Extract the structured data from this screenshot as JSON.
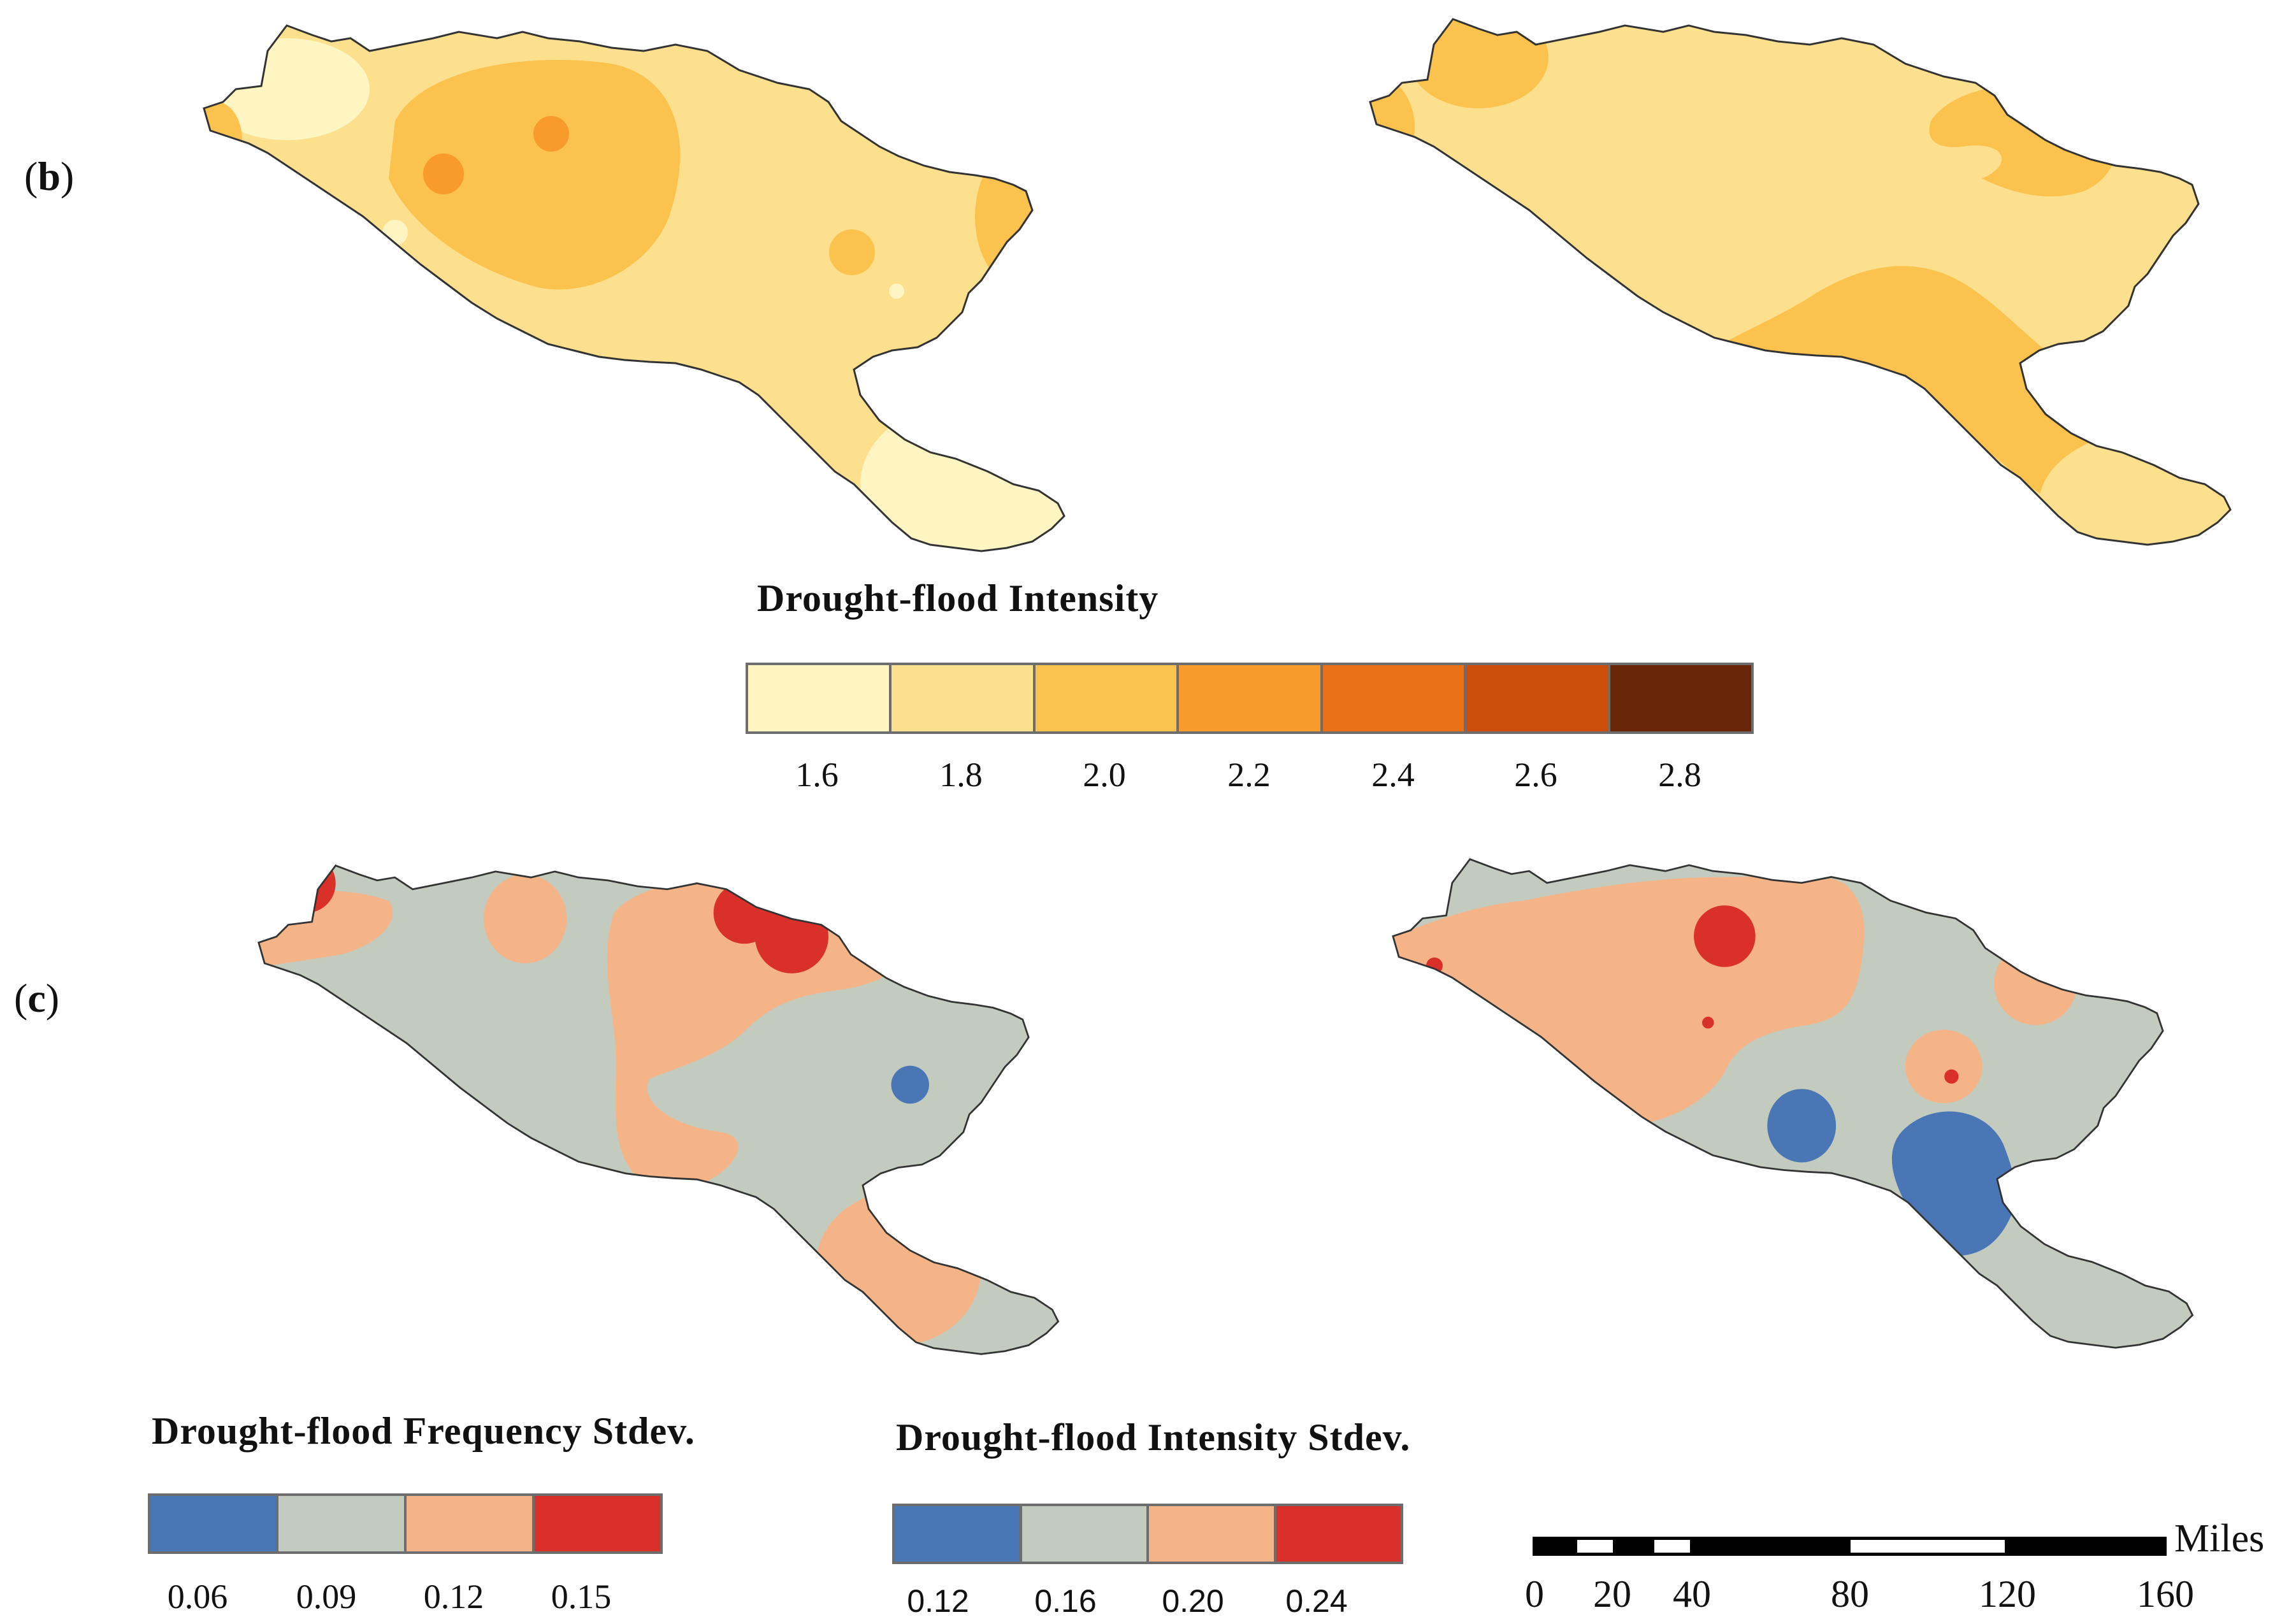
{
  "panels": {
    "b": {
      "label_open": "(",
      "label_letter": "b",
      "label_close": ")"
    },
    "c": {
      "label_open": "(",
      "label_letter": "c",
      "label_close": ")"
    }
  },
  "intensity_legend": {
    "title": "Drought-flood Intensity",
    "ticks": [
      "1.6",
      "1.8",
      "2.0",
      "2.2",
      "2.4",
      "2.6",
      "2.8"
    ],
    "colors": [
      "#fff5c2",
      "#fde08d",
      "#fcc24e",
      "#f99a2c",
      "#ea7118",
      "#cc4e0a",
      "#6a2608"
    ]
  },
  "frequency_stdev_legend": {
    "title": "Drought-flood Frequency Stdev.",
    "ticks": [
      "0.06",
      "0.09",
      "0.12",
      "0.15"
    ],
    "colors": [
      "#4a76b6",
      "#c2cbbd",
      "#f5b488",
      "#d9302a"
    ]
  },
  "intensity_stdev_legend": {
    "title": "Drought-flood Intensity Stdev.",
    "ticks": [
      "0.12",
      "0.16",
      "0.20",
      "0.24"
    ],
    "colors": [
      "#4a76b6",
      "#c2cbbd",
      "#f5b488",
      "#d9302a"
    ]
  },
  "scale_bar": {
    "unit": "Miles",
    "ticks": [
      "0",
      "20",
      "40",
      "80",
      "120",
      "160"
    ]
  }
}
